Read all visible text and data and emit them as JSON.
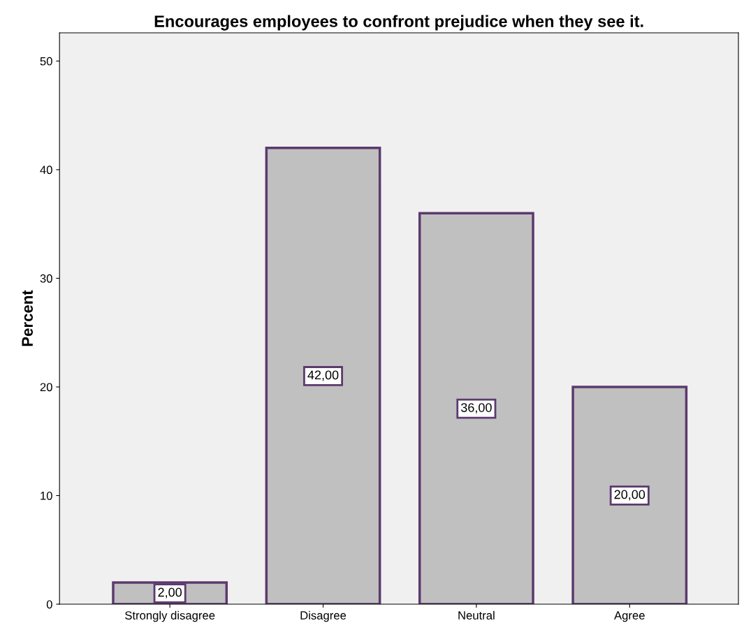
{
  "chart_data": {
    "type": "bar",
    "title": "Encourages employees to confront prejudice when they see it.",
    "ylabel": "Percent",
    "categories": [
      "Strongly disagree",
      "Disagree",
      "Neutral",
      "Agree"
    ],
    "values": [
      2,
      42,
      36,
      20
    ],
    "value_labels": [
      "2,00",
      "42,00",
      "36,00",
      "20,00"
    ],
    "color": "#c0c0c0",
    "ylim": [
      0,
      52.6
    ],
    "yticks": [
      0,
      10,
      20,
      30,
      40,
      50
    ],
    "grid": false,
    "legend": false
  }
}
